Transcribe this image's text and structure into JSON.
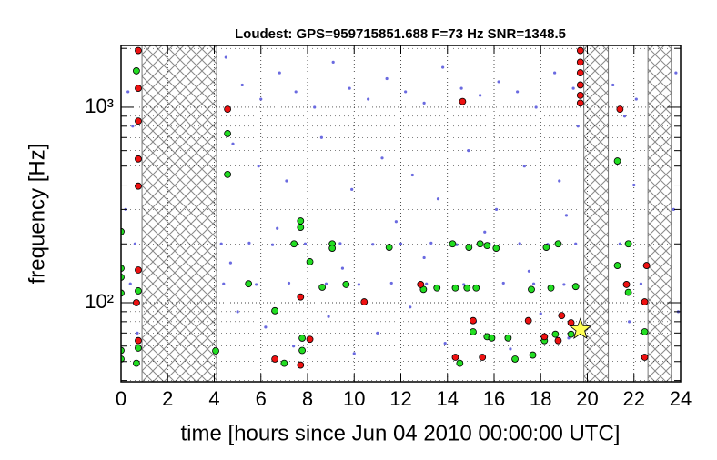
{
  "chart_data": {
    "type": "scatter",
    "title": "Loudest: GPS=959715851.688   F=73 Hz   SNR=1348.5",
    "x_label": "time [hours since Jun 04 2010 00:00:00 UTC]",
    "y_label": "frequency [Hz]",
    "xlim": [
      0,
      24
    ],
    "ylim": [
      39.4,
      2070
    ],
    "y_log": true,
    "grid": true,
    "xticks": [
      0,
      2,
      4,
      6,
      8,
      10,
      12,
      14,
      16,
      18,
      20,
      22,
      24
    ],
    "yticks": [
      {
        "value": 100,
        "label": "10²"
      },
      {
        "value": 1000,
        "label": "10³"
      }
    ],
    "yminorticks": [
      40,
      50,
      60,
      70,
      80,
      90,
      200,
      300,
      400,
      500,
      600,
      700,
      800,
      900,
      2000
    ],
    "vetoed_segments": [
      [
        0.9,
        4.1
      ],
      [
        19.85,
        20.9
      ],
      [
        22.6,
        23.6
      ]
    ],
    "series": [
      {
        "color": "#6a6ae0",
        "x": [
          0.3,
          0.5,
          0.2,
          0.6,
          0.4,
          0.7,
          4.5,
          5.2,
          6.0,
          6.8,
          7.5,
          8.3,
          9.1,
          9.8,
          10.6,
          11.4,
          12.2,
          13.0,
          13.8,
          14.6,
          15.4,
          16.2,
          17.0,
          17.8,
          18.6,
          19.4,
          4.8,
          5.9,
          7.1,
          8.6,
          9.9,
          11.2,
          12.5,
          13.6,
          14.9,
          16.1,
          17.3,
          18.8,
          19.6,
          4.3,
          5.5,
          6.5,
          7.9,
          9.4,
          10.8,
          12.0,
          13.3,
          14.4,
          15.8,
          17.1,
          18.3,
          19.5,
          4.4,
          5.8,
          7.2,
          8.8,
          10.2,
          11.6,
          13.1,
          14.7,
          16.4,
          17.7,
          19.0,
          5.0,
          6.2,
          7.4,
          8.9,
          10.0,
          11.0,
          12.4,
          13.9,
          15.2,
          16.7,
          18.0,
          19.2,
          4.7,
          6.7,
          9.5,
          11.8,
          13.0,
          15.6,
          17.5,
          19.1,
          21.1,
          21.6,
          22.0,
          21.4,
          22.3,
          21.8,
          22.1,
          23.8,
          23.7,
          23.9
        ],
        "y": [
          1200,
          800,
          300,
          200,
          125,
          70,
          1800,
          1300,
          1100,
          1500,
          1200,
          1000,
          1700,
          1250,
          1100,
          1400,
          1200,
          1050,
          1600,
          1250,
          1150,
          1350,
          1200,
          1000,
          1500,
          1250,
          650,
          500,
          420,
          700,
          380,
          550,
          450,
          340,
          600,
          300,
          500,
          420,
          800,
          200,
          202,
          198,
          200,
          201,
          199,
          200,
          202,
          198,
          200,
          201,
          199,
          200,
          125,
          124,
          126,
          125,
          124,
          126,
          125,
          124,
          126,
          125,
          124,
          90,
          75,
          60,
          85,
          55,
          70,
          95,
          62,
          80,
          58,
          88,
          66,
          160,
          240,
          150,
          260,
          170,
          230,
          145,
          280,
          1300,
          900,
          400,
          200,
          125,
          80,
          1100,
          1500,
          300,
          90
        ]
      },
      {
        "color": "#22dd22",
        "x": [
          0.0,
          0.0,
          0.0,
          0.0,
          0.0,
          0.0,
          0.66,
          0.74,
          0.74,
          0.66,
          4.57,
          4.57,
          4.06,
          5.47,
          6.6,
          7.0,
          7.7,
          7.7,
          7.42,
          8.1,
          7.77,
          7.77,
          8.63,
          9.06,
          9.06,
          9.65,
          11.5,
          12.97,
          13.55,
          14.34,
          14.84,
          15.23,
          14.22,
          14.92,
          15.4,
          15.7,
          16.09,
          15.1,
          15.7,
          15.9,
          14.53,
          16.6,
          17.6,
          16.9,
          17.66,
          18.24,
          18.75,
          18.44,
          18.16,
          18.63,
          19.3,
          19.5,
          21.29,
          21.29,
          21.76,
          21.76,
          22.46
        ],
        "y": [
          231,
          150,
          135,
          112,
          57,
          51.5,
          1535,
          115,
          58.6,
          49,
          733,
          453,
          56.7,
          125,
          91,
          49,
          262,
          243,
          200,
          162,
          65.9,
          57,
          120,
          200,
          190,
          124,
          192,
          117,
          119,
          119,
          119,
          119,
          200,
          192,
          200,
          196,
          190,
          71,
          67,
          66,
          49,
          66,
          117,
          51.5,
          54,
          192,
          200,
          119,
          64,
          69,
          69,
          121,
          531,
          155,
          200,
          113,
          71
        ]
      },
      {
        "color": "#ee1111",
        "x": [
          0.74,
          0.74,
          0.74,
          0.74,
          0.74,
          0.74,
          0.66,
          0.74,
          4.57,
          14.65,
          19.7,
          19.7,
          19.7,
          19.7,
          19.7,
          19.7,
          21.4,
          7.7,
          8.1,
          6.6,
          7.7,
          10.43,
          12.85,
          15.1,
          14.34,
          17.47,
          18.16,
          18.75,
          18.9,
          19.3,
          21.68,
          22.54,
          22.46,
          22.46,
          15.5
        ],
        "y": [
          1950,
          1250,
          850,
          544,
          395,
          147,
          100,
          64,
          977,
          1070,
          1950,
          1700,
          1500,
          1300,
          1150,
          1050,
          977,
          107,
          65,
          51.5,
          48,
          101,
          124,
          81,
          52.6,
          81,
          67,
          64,
          86,
          79,
          124,
          155,
          101,
          52.6,
          52.6
        ]
      }
    ],
    "loudest": {
      "x": 19.7,
      "y": 73,
      "color": "#ffff55"
    }
  }
}
